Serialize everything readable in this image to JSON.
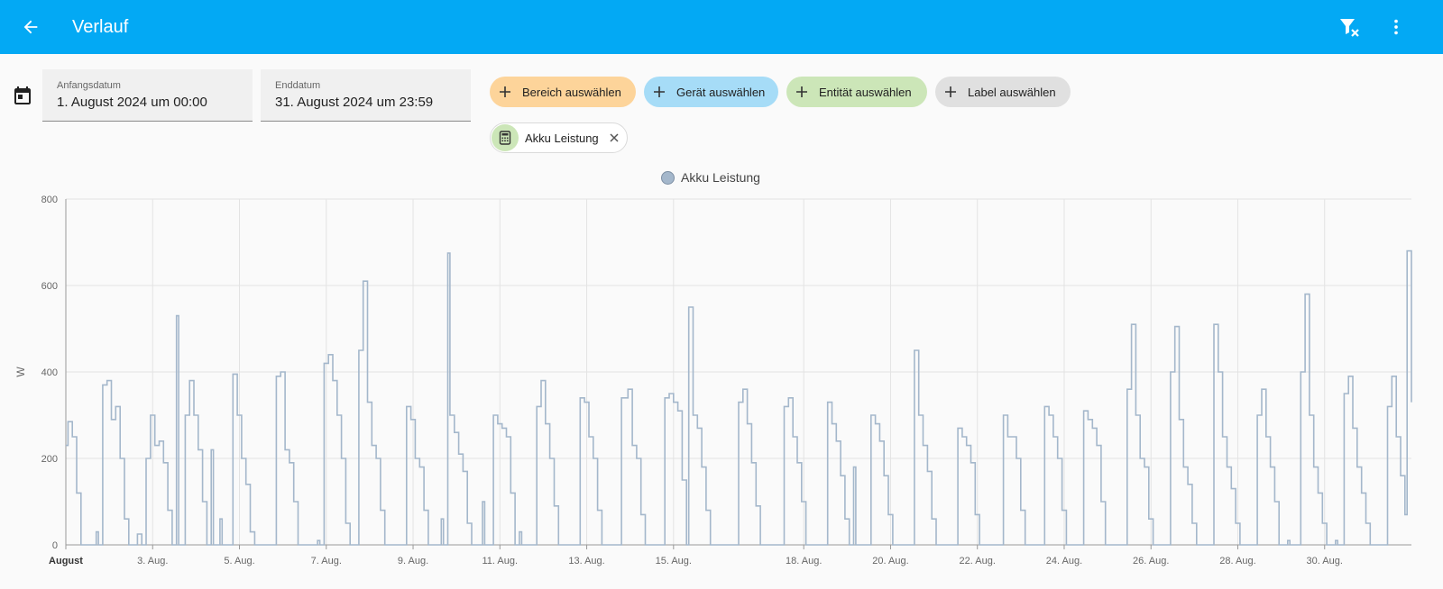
{
  "header": {
    "title": "Verlauf",
    "back_icon": "arrow-left-icon",
    "filter_icon": "filter-remove-icon",
    "more_icon": "dots-vertical-icon"
  },
  "date_range": {
    "start_label": "Anfangsdatum",
    "start_value": "1. August 2024 um 00:00",
    "end_label": "Enddatum",
    "end_value": "31. August 2024 um 23:59"
  },
  "target_picker": {
    "area": "Bereich auswählen",
    "device": "Gerät auswählen",
    "entity": "Entität auswählen",
    "label": "Label auswählen",
    "selected": [
      {
        "name": "Akku Leistung",
        "icon": "calculator-icon"
      }
    ]
  },
  "colors": {
    "app_bar": "#03a9f4",
    "series": "#a4b7cb",
    "chip_area": "#fdd49a",
    "chip_device": "#a6dcf7",
    "chip_entity": "#cce6b8",
    "chip_label": "#e0e0e0"
  },
  "chart_data": {
    "type": "line",
    "legend": [
      "Akku Leistung"
    ],
    "legend_position": "top-center",
    "ylabel": "W",
    "ylim": [
      0,
      800
    ],
    "yticks": [
      0,
      200,
      400,
      600,
      800
    ],
    "xlim": [
      1,
      32
    ],
    "x_ticks": [
      {
        "day": 1,
        "label": "August",
        "bold": true
      },
      {
        "day": 3,
        "label": "3. Aug."
      },
      {
        "day": 5,
        "label": "5. Aug."
      },
      {
        "day": 7,
        "label": "7. Aug."
      },
      {
        "day": 9,
        "label": "9. Aug."
      },
      {
        "day": 11,
        "label": "11. Aug."
      },
      {
        "day": 13,
        "label": "13. Aug."
      },
      {
        "day": 15,
        "label": "15. Aug."
      },
      {
        "day": 18,
        "label": "18. Aug."
      },
      {
        "day": 20,
        "label": "20. Aug."
      },
      {
        "day": 22,
        "label": "22. Aug."
      },
      {
        "day": 24,
        "label": "24. Aug."
      },
      {
        "day": 26,
        "label": "26. Aug."
      },
      {
        "day": 28,
        "label": "28. Aug."
      },
      {
        "day": 30,
        "label": "30. Aug."
      }
    ],
    "grid": true,
    "series": [
      {
        "name": "Akku Leistung",
        "unit": "W",
        "points": [
          [
            1.0,
            230
          ],
          [
            1.05,
            285
          ],
          [
            1.15,
            250
          ],
          [
            1.25,
            120
          ],
          [
            1.35,
            0
          ],
          [
            1.7,
            30
          ],
          [
            1.75,
            0
          ],
          [
            1.85,
            370
          ],
          [
            1.95,
            380
          ],
          [
            2.05,
            290
          ],
          [
            2.15,
            320
          ],
          [
            2.25,
            200
          ],
          [
            2.35,
            60
          ],
          [
            2.45,
            0
          ],
          [
            2.65,
            25
          ],
          [
            2.75,
            0
          ],
          [
            2.85,
            200
          ],
          [
            2.95,
            300
          ],
          [
            3.05,
            230
          ],
          [
            3.15,
            240
          ],
          [
            3.25,
            190
          ],
          [
            3.35,
            80
          ],
          [
            3.45,
            0
          ],
          [
            3.55,
            530
          ],
          [
            3.6,
            0
          ],
          [
            3.75,
            300
          ],
          [
            3.85,
            380
          ],
          [
            3.95,
            300
          ],
          [
            4.05,
            220
          ],
          [
            4.15,
            100
          ],
          [
            4.25,
            0
          ],
          [
            4.35,
            220
          ],
          [
            4.4,
            0
          ],
          [
            4.55,
            60
          ],
          [
            4.6,
            0
          ],
          [
            4.85,
            395
          ],
          [
            4.95,
            300
          ],
          [
            5.05,
            200
          ],
          [
            5.15,
            140
          ],
          [
            5.25,
            30
          ],
          [
            5.35,
            0
          ],
          [
            5.85,
            390
          ],
          [
            5.95,
            400
          ],
          [
            6.05,
            220
          ],
          [
            6.15,
            190
          ],
          [
            6.25,
            100
          ],
          [
            6.35,
            0
          ],
          [
            6.8,
            10
          ],
          [
            6.85,
            0
          ],
          [
            6.95,
            420
          ],
          [
            7.05,
            440
          ],
          [
            7.15,
            380
          ],
          [
            7.25,
            300
          ],
          [
            7.35,
            200
          ],
          [
            7.45,
            50
          ],
          [
            7.55,
            0
          ],
          [
            7.75,
            450
          ],
          [
            7.85,
            610
          ],
          [
            7.95,
            330
          ],
          [
            8.05,
            230
          ],
          [
            8.15,
            200
          ],
          [
            8.25,
            80
          ],
          [
            8.35,
            0
          ],
          [
            8.85,
            320
          ],
          [
            8.95,
            290
          ],
          [
            9.05,
            200
          ],
          [
            9.15,
            180
          ],
          [
            9.25,
            80
          ],
          [
            9.35,
            0
          ],
          [
            9.65,
            60
          ],
          [
            9.7,
            0
          ],
          [
            9.8,
            675
          ],
          [
            9.85,
            300
          ],
          [
            9.95,
            260
          ],
          [
            10.05,
            210
          ],
          [
            10.15,
            170
          ],
          [
            10.25,
            50
          ],
          [
            10.35,
            0
          ],
          [
            10.6,
            100
          ],
          [
            10.65,
            0
          ],
          [
            10.85,
            300
          ],
          [
            10.95,
            280
          ],
          [
            11.05,
            270
          ],
          [
            11.15,
            250
          ],
          [
            11.25,
            120
          ],
          [
            11.35,
            0
          ],
          [
            11.45,
            30
          ],
          [
            11.5,
            0
          ],
          [
            11.85,
            320
          ],
          [
            11.95,
            380
          ],
          [
            12.05,
            280
          ],
          [
            12.15,
            200
          ],
          [
            12.25,
            90
          ],
          [
            12.35,
            0
          ],
          [
            12.85,
            340
          ],
          [
            12.95,
            330
          ],
          [
            13.05,
            250
          ],
          [
            13.15,
            200
          ],
          [
            13.25,
            80
          ],
          [
            13.35,
            0
          ],
          [
            13.8,
            340
          ],
          [
            13.95,
            360
          ],
          [
            14.05,
            230
          ],
          [
            14.15,
            200
          ],
          [
            14.25,
            70
          ],
          [
            14.35,
            0
          ],
          [
            14.8,
            340
          ],
          [
            14.9,
            350
          ],
          [
            15.0,
            330
          ],
          [
            15.1,
            310
          ],
          [
            15.2,
            150
          ],
          [
            15.3,
            0
          ],
          [
            15.35,
            550
          ],
          [
            15.45,
            300
          ],
          [
            15.55,
            270
          ],
          [
            15.65,
            180
          ],
          [
            15.75,
            80
          ],
          [
            15.85,
            0
          ],
          [
            16.5,
            330
          ],
          [
            16.6,
            360
          ],
          [
            16.7,
            280
          ],
          [
            16.8,
            190
          ],
          [
            16.9,
            90
          ],
          [
            17.0,
            0
          ],
          [
            17.55,
            320
          ],
          [
            17.65,
            340
          ],
          [
            17.75,
            250
          ],
          [
            17.85,
            190
          ],
          [
            17.95,
            100
          ],
          [
            18.05,
            0
          ],
          [
            18.55,
            330
          ],
          [
            18.65,
            280
          ],
          [
            18.75,
            240
          ],
          [
            18.85,
            160
          ],
          [
            18.95,
            60
          ],
          [
            19.05,
            0
          ],
          [
            19.15,
            180
          ],
          [
            19.2,
            0
          ],
          [
            19.55,
            300
          ],
          [
            19.65,
            280
          ],
          [
            19.75,
            240
          ],
          [
            19.85,
            160
          ],
          [
            19.95,
            70
          ],
          [
            20.05,
            0
          ],
          [
            20.55,
            450
          ],
          [
            20.65,
            300
          ],
          [
            20.75,
            230
          ],
          [
            20.85,
            170
          ],
          [
            20.95,
            60
          ],
          [
            21.05,
            0
          ],
          [
            21.55,
            270
          ],
          [
            21.65,
            250
          ],
          [
            21.75,
            230
          ],
          [
            21.85,
            190
          ],
          [
            21.95,
            70
          ],
          [
            22.05,
            0
          ],
          [
            22.6,
            300
          ],
          [
            22.7,
            250
          ],
          [
            22.8,
            250
          ],
          [
            22.9,
            200
          ],
          [
            23.0,
            80
          ],
          [
            23.1,
            0
          ],
          [
            23.55,
            320
          ],
          [
            23.65,
            300
          ],
          [
            23.75,
            250
          ],
          [
            23.85,
            200
          ],
          [
            23.95,
            80
          ],
          [
            24.05,
            0
          ],
          [
            24.45,
            310
          ],
          [
            24.55,
            290
          ],
          [
            24.65,
            270
          ],
          [
            24.75,
            230
          ],
          [
            24.85,
            100
          ],
          [
            24.95,
            0
          ],
          [
            25.45,
            360
          ],
          [
            25.55,
            510
          ],
          [
            25.65,
            300
          ],
          [
            25.75,
            200
          ],
          [
            25.85,
            180
          ],
          [
            25.95,
            60
          ],
          [
            26.05,
            0
          ],
          [
            26.45,
            400
          ],
          [
            26.55,
            505
          ],
          [
            26.65,
            290
          ],
          [
            26.75,
            180
          ],
          [
            26.85,
            140
          ],
          [
            26.95,
            50
          ],
          [
            27.05,
            0
          ],
          [
            27.45,
            510
          ],
          [
            27.55,
            400
          ],
          [
            27.65,
            250
          ],
          [
            27.75,
            180
          ],
          [
            27.85,
            130
          ],
          [
            27.95,
            50
          ],
          [
            28.05,
            0
          ],
          [
            28.45,
            300
          ],
          [
            28.55,
            360
          ],
          [
            28.65,
            250
          ],
          [
            28.75,
            180
          ],
          [
            28.85,
            100
          ],
          [
            28.95,
            0
          ],
          [
            29.15,
            10
          ],
          [
            29.2,
            0
          ],
          [
            29.45,
            400
          ],
          [
            29.55,
            580
          ],
          [
            29.65,
            300
          ],
          [
            29.75,
            180
          ],
          [
            29.85,
            120
          ],
          [
            29.95,
            50
          ],
          [
            30.05,
            0
          ],
          [
            30.25,
            10
          ],
          [
            30.3,
            0
          ],
          [
            30.45,
            350
          ],
          [
            30.55,
            390
          ],
          [
            30.65,
            270
          ],
          [
            30.75,
            180
          ],
          [
            30.85,
            120
          ],
          [
            30.95,
            50
          ],
          [
            31.05,
            0
          ],
          [
            31.45,
            320
          ],
          [
            31.55,
            390
          ],
          [
            31.65,
            250
          ],
          [
            31.75,
            160
          ],
          [
            31.85,
            70
          ],
          [
            31.9,
            680
          ],
          [
            32.0,
            330
          ]
        ]
      }
    ]
  }
}
